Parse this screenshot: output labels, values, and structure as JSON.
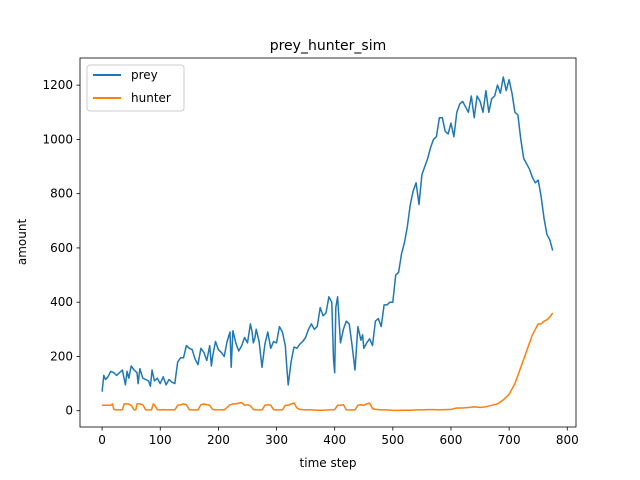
{
  "chart_data": {
    "type": "line",
    "title": "prey_hunter_sim",
    "xlabel": "time step",
    "ylabel": "amount",
    "xlim": [
      -38,
      815
    ],
    "ylim": [
      -60,
      1300
    ],
    "xticks": [
      0,
      100,
      200,
      300,
      400,
      500,
      600,
      700,
      800
    ],
    "yticks": [
      0,
      200,
      400,
      600,
      800,
      1000,
      1200
    ],
    "legend_placement": "top-left",
    "grid": false,
    "series": [
      {
        "name": "prey",
        "color": "#1f77b4",
        "x": [
          0,
          3,
          6,
          10,
          15,
          20,
          25,
          30,
          35,
          40,
          43,
          46,
          50,
          55,
          60,
          62,
          65,
          70,
          75,
          80,
          83,
          86,
          90,
          95,
          100,
          105,
          110,
          115,
          120,
          125,
          130,
          135,
          140,
          145,
          150,
          155,
          160,
          165,
          170,
          175,
          180,
          185,
          188,
          190,
          195,
          200,
          205,
          210,
          215,
          220,
          222,
          225,
          230,
          235,
          240,
          245,
          250,
          255,
          258,
          260,
          263,
          265,
          270,
          275,
          280,
          285,
          290,
          295,
          300,
          305,
          310,
          315,
          318,
          320,
          325,
          330,
          335,
          340,
          345,
          350,
          355,
          360,
          365,
          370,
          375,
          380,
          385,
          390,
          395,
          398,
          400,
          402,
          405,
          410,
          415,
          420,
          425,
          430,
          435,
          440,
          445,
          448,
          450,
          455,
          460,
          465,
          470,
          475,
          480,
          485,
          490,
          495,
          500,
          505,
          510,
          515,
          520,
          525,
          530,
          535,
          540,
          545,
          550,
          555,
          560,
          565,
          570,
          575,
          580,
          585,
          590,
          595,
          600,
          605,
          610,
          615,
          620,
          625,
          630,
          635,
          640,
          645,
          650,
          655,
          660,
          665,
          670,
          675,
          680,
          685,
          690,
          695,
          700,
          705,
          710,
          715,
          720,
          725,
          730,
          735,
          740,
          745,
          750,
          755,
          760,
          765,
          770,
          775
        ],
        "values": [
          70,
          130,
          115,
          125,
          145,
          140,
          130,
          140,
          150,
          95,
          145,
          120,
          165,
          150,
          140,
          100,
          155,
          120,
          115,
          110,
          90,
          150,
          110,
          120,
          100,
          125,
          95,
          115,
          105,
          100,
          180,
          195,
          195,
          240,
          230,
          225,
          190,
          170,
          230,
          215,
          185,
          240,
          165,
          200,
          255,
          225,
          215,
          200,
          255,
          290,
          160,
          295,
          250,
          220,
          240,
          270,
          250,
          320,
          290,
          250,
          270,
          300,
          255,
          160,
          245,
          290,
          230,
          255,
          250,
          310,
          290,
          240,
          150,
          95,
          180,
          235,
          230,
          245,
          255,
          270,
          300,
          320,
          300,
          310,
          380,
          350,
          360,
          420,
          400,
          190,
          140,
          380,
          420,
          250,
          300,
          330,
          320,
          240,
          150,
          310,
          260,
          280,
          230,
          250,
          265,
          240,
          330,
          340,
          310,
          390,
          390,
          400,
          400,
          500,
          510,
          580,
          620,
          680,
          760,
          810,
          840,
          760,
          870,
          900,
          930,
          970,
          1000,
          1010,
          1080,
          1080,
          1030,
          1020,
          1060,
          1010,
          1100,
          1130,
          1140,
          1120,
          1100,
          1160,
          1080,
          1160,
          1140,
          1100,
          1180,
          1100,
          1150,
          1160,
          1200,
          1170,
          1230,
          1180,
          1220,
          1170,
          1100,
          1090,
          1000,
          930,
          910,
          890,
          860,
          840,
          850,
          790,
          710,
          650,
          630,
          590
        ],
        "values_note": ""
      },
      {
        "name": "hunter",
        "color": "#ff7f0e",
        "x": [
          0,
          15,
          18,
          20,
          25,
          30,
          35,
          38,
          40,
          45,
          50,
          55,
          58,
          60,
          65,
          70,
          75,
          80,
          85,
          88,
          90,
          95,
          100,
          105,
          110,
          115,
          120,
          125,
          130,
          135,
          140,
          145,
          150,
          155,
          160,
          165,
          170,
          175,
          180,
          185,
          190,
          195,
          200,
          210,
          220,
          225,
          230,
          235,
          240,
          245,
          250,
          255,
          260,
          265,
          270,
          275,
          280,
          285,
          290,
          295,
          300,
          305,
          310,
          315,
          320,
          325,
          330,
          335,
          340,
          350,
          360,
          370,
          380,
          390,
          400,
          405,
          410,
          415,
          420,
          425,
          430,
          435,
          440,
          445,
          450,
          455,
          460,
          465,
          470,
          480,
          490,
          500,
          510,
          520,
          530,
          540,
          550,
          560,
          570,
          580,
          590,
          600,
          610,
          620,
          630,
          640,
          650,
          660,
          670,
          680,
          690,
          700,
          705,
          710,
          715,
          720,
          725,
          730,
          735,
          740,
          745,
          750,
          755,
          760,
          765,
          770,
          775
        ],
        "values": [
          20,
          20,
          25,
          5,
          3,
          3,
          4,
          25,
          25,
          25,
          20,
          3,
          3,
          25,
          25,
          22,
          3,
          3,
          3,
          25,
          22,
          4,
          3,
          4,
          3,
          3,
          3,
          3,
          20,
          22,
          25,
          22,
          4,
          3,
          3,
          3,
          22,
          25,
          22,
          20,
          5,
          3,
          3,
          3,
          22,
          25,
          25,
          28,
          30,
          20,
          22,
          18,
          5,
          3,
          3,
          3,
          20,
          22,
          20,
          4,
          3,
          3,
          3,
          20,
          20,
          25,
          28,
          10,
          5,
          3,
          3,
          2,
          2,
          3,
          4,
          20,
          20,
          22,
          3,
          3,
          3,
          3,
          20,
          22,
          20,
          25,
          28,
          8,
          5,
          3,
          3,
          1,
          1,
          2,
          2,
          3,
          3,
          4,
          4,
          3,
          4,
          5,
          10,
          10,
          12,
          15,
          12,
          15,
          20,
          25,
          40,
          60,
          80,
          100,
          130,
          160,
          190,
          220,
          250,
          280,
          300,
          320,
          320,
          330,
          335,
          345,
          360
        ]
      }
    ]
  }
}
